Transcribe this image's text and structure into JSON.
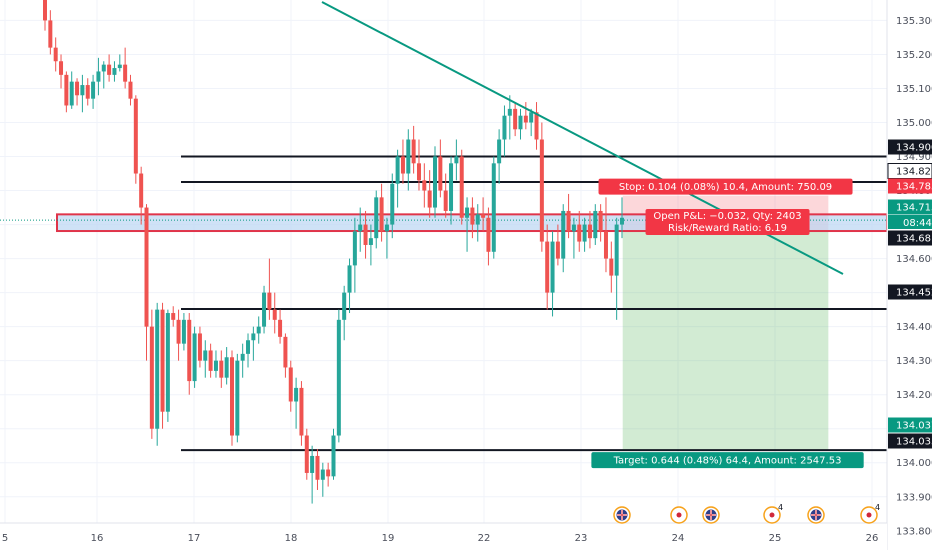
{
  "chart_data": {
    "type": "candlestick",
    "x_ticks": [
      "5",
      "16",
      "17",
      "18",
      "19",
      "22",
      "23",
      "24",
      "25",
      "26"
    ],
    "y_ticks": [
      "135.300",
      "135.200",
      "135.100",
      "135.000",
      "134.900",
      "134.800",
      "134.700",
      "134.600",
      "134.500",
      "134.400",
      "134.300",
      "134.200",
      "134.100",
      "134.000",
      "133.900",
      "133.800"
    ],
    "ylim": [
      133.77,
      135.36
    ],
    "horizontal_levels": [
      134.9,
      134.825,
      134.452,
      134.037
    ],
    "zone": {
      "low": 134.681,
      "high": 134.73
    },
    "trendline": [
      {
        "x": 15.63,
        "y": 135.36
      },
      {
        "x": 25.72,
        "y": 134.49
      }
    ],
    "position": {
      "entry": 134.681,
      "stop": 134.785,
      "target": 134.037,
      "start_x": 23.43,
      "end_x": 25.55,
      "stop_label": "Stop: 0.104 (0.08%) 10.4, Amount: 750.09",
      "target_label": "Target: 0.644 (0.48%) 64.4, Amount: 2547.53",
      "pnl_label": "Open P&L: −0.032, Qty: 2403",
      "rr_label": "Risk/Reward Ratio: 6.19"
    },
    "price_tags": [
      {
        "price": 134.9,
        "label": "134.900",
        "color": "#131722",
        "text_color": "#ffffff"
      },
      {
        "price": 134.825,
        "label": "134.825",
        "color": "#ffffff",
        "text_color": "#131722"
      },
      {
        "price": 134.785,
        "label": "134.785",
        "color": "#f23645",
        "text_color": "#ffffff"
      },
      {
        "price": 134.713,
        "label": "134.713",
        "color": "#089981",
        "text_color": "#ffffff"
      },
      {
        "price": 134.681,
        "label": "134.681",
        "color": "#131722",
        "text_color": "#ffffff"
      },
      {
        "price": 134.452,
        "label": "134.452",
        "color": "#131722",
        "text_color": "#ffffff"
      },
      {
        "price": 134.037,
        "label": "134.037",
        "color": "#089981",
        "text_color": "#ffffff"
      },
      {
        "price": 134.033,
        "label": "134.033",
        "color": "#131722",
        "text_color": "#ffffff"
      }
    ],
    "countdown": "08:44",
    "last_price": 134.713,
    "event_markers": [
      {
        "x": 23.4,
        "kind": "uk-flag-icon",
        "badge": ""
      },
      {
        "x": 24.0,
        "kind": "japan-flag-icon",
        "badge": ""
      },
      {
        "x": 24.35,
        "kind": "uk-flag-icon",
        "badge": ""
      },
      {
        "x": 24.97,
        "kind": "japan-flag-icon",
        "badge": "4"
      },
      {
        "x": 25.43,
        "kind": "uk-flag-icon",
        "badge": ""
      },
      {
        "x": 25.95,
        "kind": "japan-flag-icon",
        "badge": "4"
      }
    ],
    "candles": [
      [
        15.45,
        135.36,
        135.38,
        135.27,
        135.3
      ],
      [
        15.5,
        135.3,
        135.33,
        135.2,
        135.22
      ],
      [
        15.55,
        135.22,
        135.25,
        135.15,
        135.18
      ],
      [
        15.6,
        135.18,
        135.2,
        135.1,
        135.14
      ],
      [
        15.65,
        135.14,
        135.15,
        135.03,
        135.05
      ],
      [
        15.7,
        135.05,
        135.15,
        135.04,
        135.12
      ],
      [
        15.75,
        135.12,
        135.13,
        135.05,
        135.08
      ],
      [
        15.8,
        135.08,
        135.14,
        135.03,
        135.11
      ],
      [
        15.85,
        135.11,
        135.13,
        135.05,
        135.07
      ],
      [
        15.9,
        135.07,
        135.14,
        135.04,
        135.12
      ],
      [
        15.95,
        135.12,
        135.19,
        135.08,
        135.15
      ],
      [
        16.0,
        135.15,
        135.18,
        135.1,
        135.17
      ],
      [
        16.05,
        135.17,
        135.2,
        135.12,
        135.14
      ],
      [
        16.1,
        135.14,
        135.18,
        135.12,
        135.16
      ],
      [
        16.15,
        135.16,
        135.2,
        135.15,
        135.17
      ],
      [
        16.2,
        135.17,
        135.22,
        135.1,
        135.12
      ],
      [
        16.25,
        135.12,
        135.14,
        135.05,
        135.07
      ],
      [
        16.3,
        135.07,
        135.08,
        134.82,
        134.85
      ],
      [
        16.35,
        134.85,
        134.87,
        134.7,
        134.75
      ],
      [
        16.4,
        134.75,
        134.76,
        134.3,
        134.4
      ],
      [
        16.45,
        134.4,
        134.45,
        134.07,
        134.1
      ],
      [
        16.5,
        134.1,
        134.47,
        134.05,
        134.45
      ],
      [
        16.55,
        134.45,
        134.47,
        134.1,
        134.15
      ],
      [
        16.6,
        134.15,
        134.45,
        134.12,
        134.44
      ],
      [
        16.65,
        134.44,
        134.46,
        134.4,
        134.42
      ],
      [
        16.7,
        134.42,
        134.45,
        134.3,
        134.35
      ],
      [
        16.75,
        134.35,
        134.44,
        134.33,
        134.42
      ],
      [
        16.8,
        134.42,
        134.44,
        134.2,
        134.24
      ],
      [
        16.85,
        134.24,
        134.4,
        134.22,
        134.38
      ],
      [
        16.9,
        134.38,
        134.4,
        134.28,
        134.3
      ],
      [
        16.95,
        134.3,
        134.36,
        134.25,
        134.33
      ],
      [
        17.0,
        134.33,
        134.35,
        134.25,
        134.27
      ],
      [
        17.05,
        134.27,
        134.33,
        134.25,
        134.3
      ],
      [
        17.1,
        134.3,
        134.33,
        134.22,
        134.25
      ],
      [
        17.15,
        134.25,
        134.34,
        134.23,
        134.31
      ],
      [
        17.2,
        134.31,
        134.33,
        134.05,
        134.08
      ],
      [
        17.25,
        134.08,
        134.32,
        134.06,
        134.3
      ],
      [
        17.3,
        134.3,
        134.35,
        134.25,
        134.32
      ],
      [
        17.35,
        134.32,
        134.38,
        134.28,
        134.36
      ],
      [
        17.4,
        134.36,
        134.4,
        134.3,
        134.38
      ],
      [
        17.45,
        134.38,
        134.43,
        134.35,
        134.4
      ],
      [
        17.5,
        134.4,
        134.52,
        134.38,
        134.5
      ],
      [
        17.55,
        134.5,
        134.6,
        134.42,
        134.45
      ],
      [
        17.6,
        134.45,
        134.5,
        134.38,
        134.42
      ],
      [
        17.65,
        134.42,
        134.45,
        134.35,
        134.37
      ],
      [
        17.7,
        134.37,
        134.38,
        134.25,
        134.28
      ],
      [
        17.75,
        134.28,
        134.3,
        134.15,
        134.18
      ],
      [
        17.8,
        134.18,
        134.25,
        134.1,
        134.22
      ],
      [
        17.85,
        134.22,
        134.24,
        134.05,
        134.08
      ],
      [
        17.9,
        134.08,
        134.1,
        133.95,
        133.97
      ],
      [
        17.95,
        133.97,
        134.05,
        133.88,
        134.02
      ],
      [
        18.0,
        134.02,
        134.04,
        133.92,
        133.95
      ],
      [
        18.05,
        133.95,
        134.0,
        133.9,
        133.98
      ],
      [
        18.1,
        133.98,
        134.0,
        133.93,
        133.96
      ],
      [
        18.15,
        133.96,
        134.1,
        133.95,
        134.08
      ],
      [
        18.2,
        134.08,
        134.45,
        134.06,
        134.42
      ],
      [
        18.25,
        134.42,
        134.52,
        134.36,
        134.5
      ],
      [
        18.3,
        134.5,
        134.6,
        134.44,
        134.58
      ],
      [
        18.35,
        134.58,
        134.72,
        134.5,
        134.68
      ],
      [
        18.4,
        134.68,
        134.75,
        134.62,
        134.7
      ],
      [
        18.45,
        134.7,
        134.74,
        134.6,
        134.64
      ],
      [
        18.5,
        134.64,
        134.7,
        134.58,
        134.66
      ],
      [
        18.55,
        134.66,
        134.8,
        134.63,
        134.78
      ],
      [
        18.6,
        134.78,
        134.82,
        134.65,
        134.68
      ],
      [
        18.65,
        134.68,
        134.72,
        134.6,
        134.7
      ],
      [
        18.7,
        134.7,
        134.85,
        134.66,
        134.82
      ],
      [
        18.75,
        134.82,
        134.92,
        134.75,
        134.9
      ],
      [
        18.8,
        134.9,
        134.95,
        134.82,
        134.85
      ],
      [
        18.85,
        134.85,
        134.98,
        134.8,
        134.95
      ],
      [
        18.9,
        134.95,
        134.99,
        134.85,
        134.88
      ],
      [
        18.95,
        134.88,
        134.95,
        134.8,
        134.83
      ],
      [
        19.0,
        134.83,
        134.88,
        134.75,
        134.8
      ],
      [
        19.05,
        134.8,
        134.86,
        134.72,
        134.75
      ],
      [
        19.1,
        134.75,
        134.93,
        134.72,
        134.9
      ],
      [
        19.15,
        134.9,
        134.95,
        134.78,
        134.8
      ],
      [
        19.2,
        134.8,
        134.85,
        134.72,
        134.74
      ],
      [
        19.25,
        134.74,
        134.9,
        134.7,
        134.88
      ],
      [
        19.3,
        134.88,
        134.95,
        134.83,
        134.9
      ],
      [
        19.35,
        134.9,
        134.92,
        134.7,
        134.72
      ],
      [
        19.4,
        134.72,
        134.78,
        134.62,
        134.75
      ],
      [
        19.45,
        134.75,
        134.78,
        134.66,
        134.7
      ],
      [
        19.5,
        134.7,
        134.76,
        134.65,
        134.73
      ],
      [
        19.55,
        134.73,
        134.78,
        134.68,
        134.72
      ],
      [
        19.6,
        134.72,
        134.75,
        134.58,
        134.62
      ],
      [
        19.65,
        134.62,
        134.9,
        134.6,
        134.88
      ],
      [
        19.7,
        134.88,
        134.98,
        134.82,
        134.95
      ],
      [
        19.75,
        134.95,
        135.05,
        134.9,
        135.02
      ],
      [
        19.8,
        135.02,
        135.08,
        134.95,
        135.04
      ],
      [
        19.85,
        135.04,
        135.06,
        134.96,
        134.98
      ],
      [
        19.9,
        134.98,
        135.04,
        134.95,
        135.02
      ],
      [
        19.95,
        135.02,
        135.06,
        134.98,
        135.0
      ],
      [
        20.0,
        135.0,
        135.04,
        134.96,
        135.03
      ],
      [
        20.05,
        135.03,
        135.06,
        134.92,
        134.95
      ],
      [
        20.1,
        134.95,
        135.0,
        134.62,
        134.65
      ],
      [
        20.15,
        134.65,
        134.7,
        134.45,
        134.5
      ],
      [
        20.2,
        134.5,
        134.68,
        134.43,
        134.65
      ],
      [
        20.25,
        134.65,
        134.7,
        134.58,
        134.6
      ],
      [
        20.3,
        134.6,
        134.76,
        134.56,
        134.74
      ],
      [
        20.35,
        134.74,
        134.79,
        134.66,
        134.68
      ],
      [
        20.4,
        134.68,
        134.72,
        134.6,
        134.7
      ],
      [
        20.45,
        134.7,
        134.74,
        134.62,
        134.65
      ],
      [
        20.5,
        134.65,
        134.72,
        134.62,
        134.7
      ],
      [
        20.55,
        134.7,
        134.74,
        134.63,
        134.66
      ],
      [
        20.6,
        134.66,
        134.76,
        134.64,
        134.74
      ],
      [
        20.65,
        134.74,
        134.76,
        134.65,
        134.68
      ],
      [
        20.7,
        134.68,
        134.78,
        134.56,
        134.6
      ],
      [
        20.75,
        134.6,
        134.65,
        134.5,
        134.55
      ],
      [
        20.8,
        134.55,
        134.72,
        134.42,
        134.7
      ],
      [
        20.85,
        134.7,
        134.78,
        134.66,
        134.72
      ]
    ]
  }
}
